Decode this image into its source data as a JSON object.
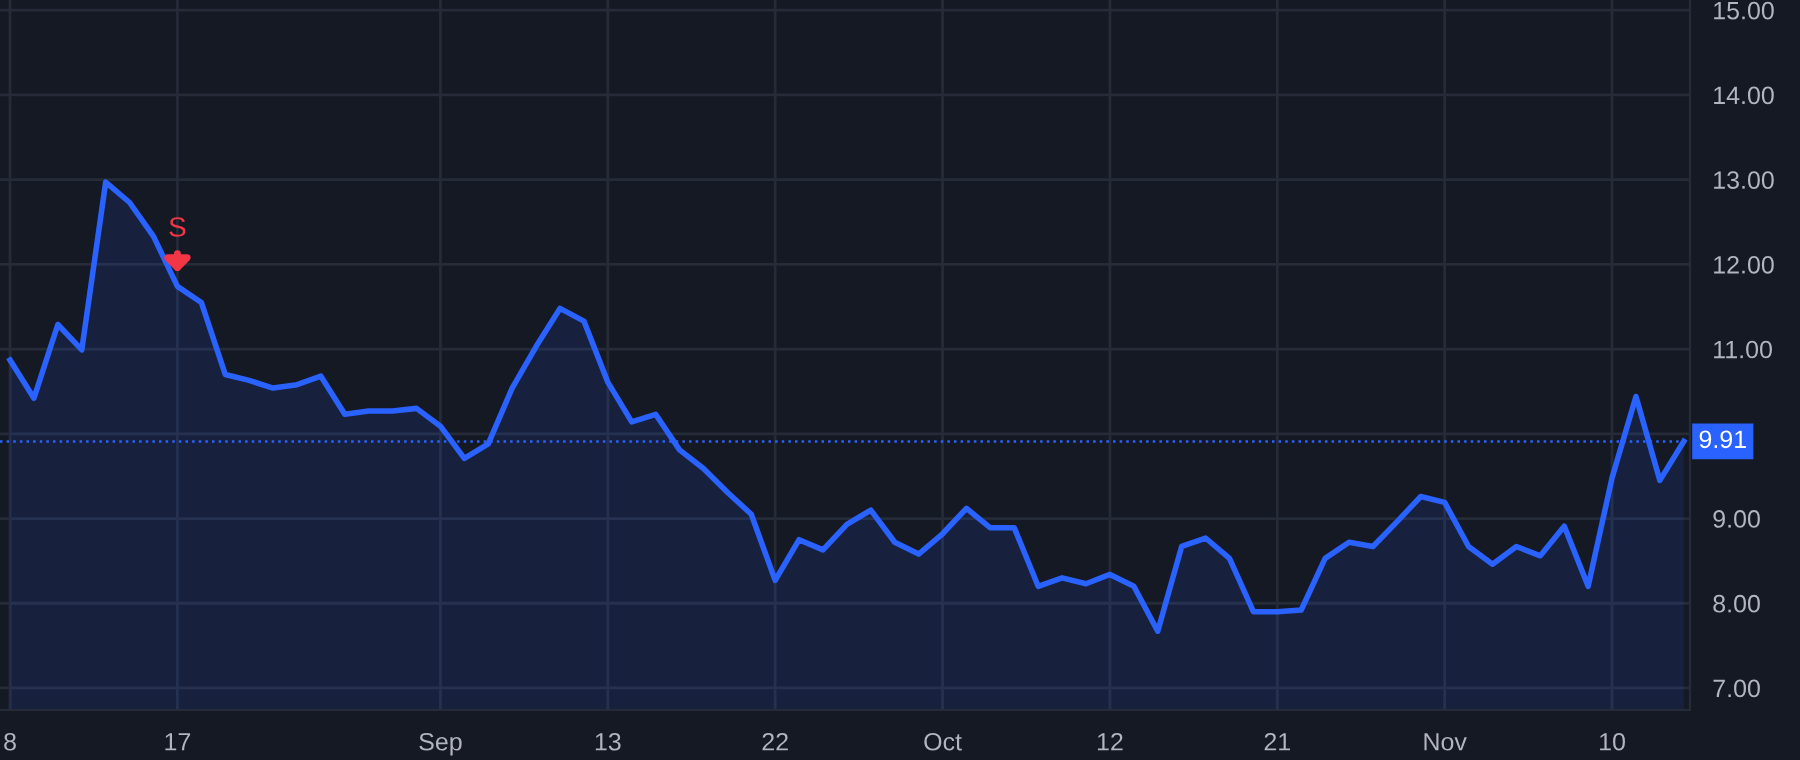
{
  "chart_data": {
    "type": "area",
    "categories": [
      "8",
      null,
      null,
      null,
      null,
      null,
      null,
      "17",
      null,
      null,
      null,
      null,
      null,
      null,
      null,
      null,
      null,
      null,
      "Sep",
      null,
      null,
      null,
      null,
      null,
      null,
      "13",
      null,
      null,
      null,
      null,
      null,
      null,
      "22",
      null,
      null,
      null,
      null,
      null,
      null,
      "Oct",
      null,
      null,
      null,
      null,
      null,
      null,
      "12",
      null,
      null,
      null,
      null,
      null,
      null,
      "21",
      null,
      null,
      null,
      null,
      null,
      null,
      "Nov",
      null,
      null,
      null,
      null,
      null,
      null,
      "10",
      null,
      null,
      null
    ],
    "series": [
      {
        "color": "#2962ff",
        "values": [
          10.87,
          10.42,
          11.29,
          10.99,
          12.97,
          12.73,
          12.33,
          11.74,
          11.55,
          10.7,
          10.63,
          10.54,
          10.58,
          10.68,
          10.23,
          10.27,
          10.27,
          10.3,
          10.09,
          9.71,
          9.88,
          10.54,
          11.03,
          11.48,
          11.33,
          10.61,
          10.14,
          10.23,
          9.81,
          9.59,
          9.31,
          9.05,
          8.27,
          8.75,
          8.63,
          8.93,
          9.1,
          8.72,
          8.58,
          8.82,
          9.12,
          8.89,
          8.89,
          8.2,
          8.3,
          8.23,
          8.34,
          8.2,
          7.67,
          8.67,
          8.77,
          8.53,
          7.9,
          7.9,
          7.92,
          8.53,
          8.72,
          8.67,
          8.96,
          9.26,
          9.19,
          8.67,
          8.46,
          8.67,
          8.56,
          8.91,
          8.2,
          9.48,
          10.44,
          9.45,
          9.91
        ]
      }
    ],
    "ylim": [
      6.74,
      15.12
    ],
    "yticks": [
      {
        "value": 7,
        "label": "7.00"
      },
      {
        "value": 8,
        "label": "8.00"
      },
      {
        "value": 9,
        "label": "9.00"
      },
      {
        "value": 10,
        "label": null
      },
      {
        "value": 11,
        "label": "11.00"
      },
      {
        "value": 12,
        "label": "12.00"
      },
      {
        "value": 13,
        "label": "13.00"
      },
      {
        "value": 14,
        "label": "14.00"
      },
      {
        "value": 15,
        "label": "15.00"
      }
    ],
    "ref_lines": [
      {
        "axis": "y",
        "value": 9.91,
        "label": "9.91",
        "color": "#2962ff",
        "line_style": "dotted"
      }
    ],
    "annotations": [
      {
        "text": "S",
        "x": "17",
        "y": 11.74
      }
    ],
    "grid": true,
    "line_style": "solid",
    "marker": "none"
  }
}
